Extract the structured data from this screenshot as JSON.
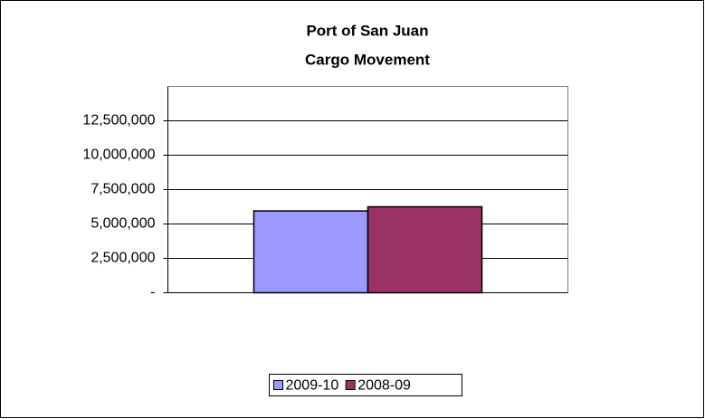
{
  "chart_data": {
    "type": "bar",
    "title": [
      "Port of San Juan",
      "Cargo Movement"
    ],
    "categories": [
      null
    ],
    "series": [
      {
        "name": "2009-10",
        "color": "#9999ff",
        "values": [
          5950000
        ]
      },
      {
        "name": "2008-09",
        "color": "#993366",
        "values": [
          6250000
        ]
      }
    ],
    "ylim": [
      0,
      15000000
    ],
    "yticks": [
      {
        "value": 0,
        "label": "-"
      },
      {
        "value": 2500000,
        "label": "2,500,000"
      },
      {
        "value": 5000000,
        "label": "5,000,000"
      },
      {
        "value": 7500000,
        "label": "7,500,000"
      },
      {
        "value": 10000000,
        "label": "10,000,000"
      },
      {
        "value": 12500000,
        "label": "12,500,000"
      }
    ],
    "grid": true,
    "legend": "bottom"
  }
}
